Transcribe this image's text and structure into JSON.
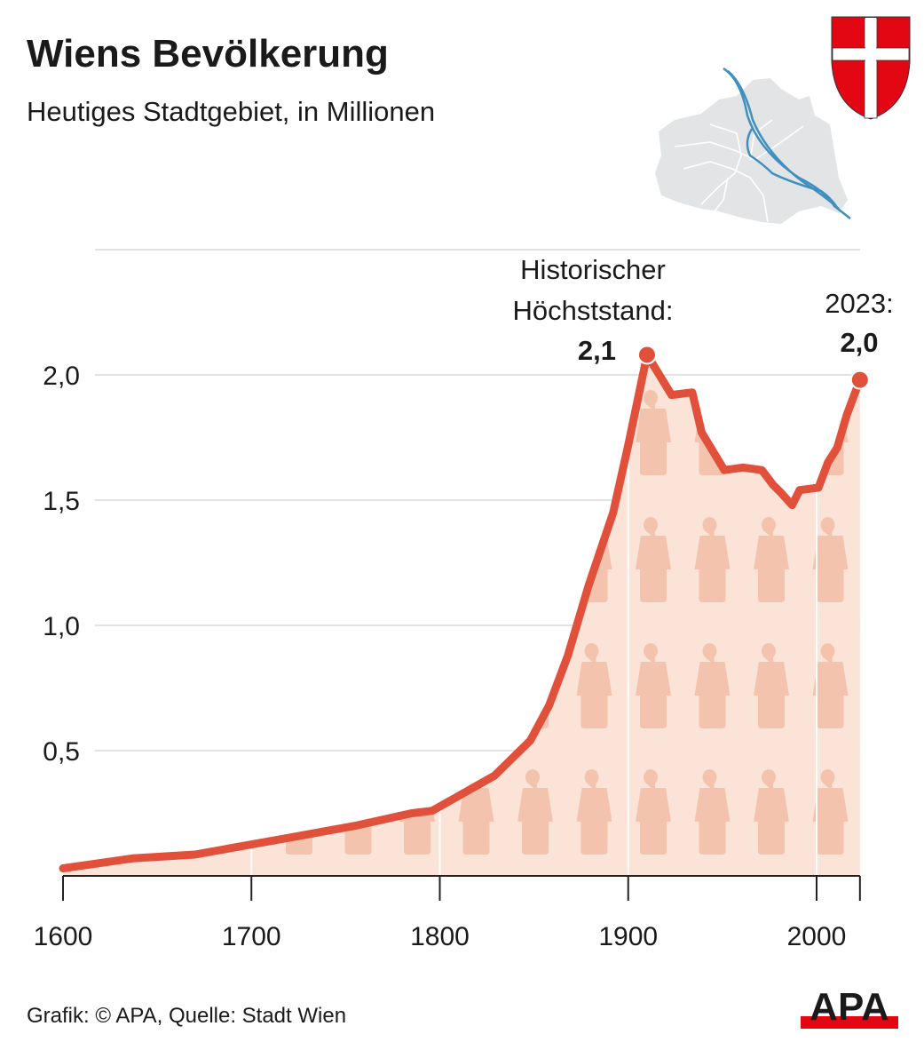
{
  "header": {
    "title": "Wiens Bevölkerung",
    "subtitle": "Heutiges Stadtgebiet, in Millionen"
  },
  "footer": {
    "source": "Grafik: © APA, Quelle: Stadt Wien",
    "logo_text": "APA"
  },
  "colors": {
    "line": "#e0503a",
    "fill": "#fbe3d8",
    "people": "#f4c3ad",
    "grid": "#d9d9d9",
    "river": "#3f8fbf",
    "map": "#e3e4e6",
    "shield_red": "#e30613"
  },
  "chart_data": {
    "type": "area",
    "title": "Wiens Bevölkerung",
    "subtitle": "Heutiges Stadtgebiet, in Millionen",
    "xlabel": "",
    "ylabel": "",
    "xlim": [
      1600,
      2023
    ],
    "ylim": [
      0,
      2.1
    ],
    "grid": true,
    "x_ticks": [
      1600,
      1700,
      1800,
      1900,
      2000
    ],
    "x_tick_labels": [
      "1600",
      "1700",
      "1800",
      "1900",
      "2000"
    ],
    "y_ticks": [
      0.5,
      1.0,
      1.5,
      2.0
    ],
    "y_tick_labels": [
      "0,5",
      "1,0",
      "1,5",
      "2,0"
    ],
    "series": [
      {
        "name": "Bevölkerung",
        "x": [
          1600,
          1637,
          1670,
          1722,
          1755,
          1785,
          1796,
          1829,
          1848,
          1858,
          1868,
          1879,
          1892,
          1900,
          1910,
          1923,
          1934,
          1939,
          1951,
          1961,
          1971,
          1977,
          1981,
          1987,
          1991,
          2001,
          2006,
          2011,
          2016,
          2023
        ],
        "values": [
          0.03,
          0.07,
          0.085,
          0.155,
          0.2,
          0.25,
          0.26,
          0.4,
          0.54,
          0.68,
          0.88,
          1.16,
          1.45,
          1.72,
          2.08,
          1.92,
          1.93,
          1.77,
          1.62,
          1.63,
          1.62,
          1.56,
          1.53,
          1.48,
          1.54,
          1.55,
          1.65,
          1.71,
          1.84,
          1.98
        ]
      }
    ],
    "annotations": [
      {
        "label_line1": "Historischer",
        "label_line2": "Höchststand:",
        "value_label": "2,1",
        "x": 1910,
        "y": 2.08
      },
      {
        "label_line1": "2023:",
        "value_label": "2,0",
        "x": 2023,
        "y": 1.98
      }
    ]
  }
}
